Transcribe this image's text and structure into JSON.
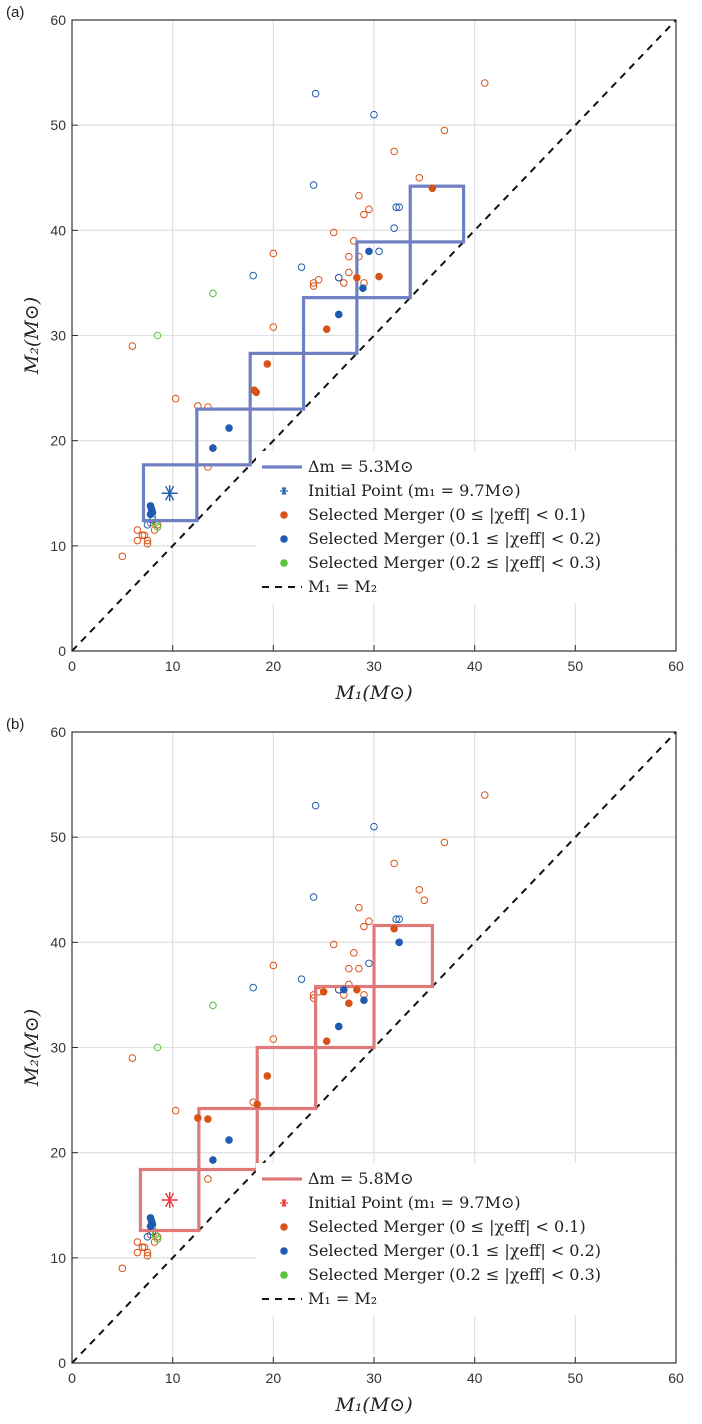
{
  "colors": {
    "orange": "#d95319",
    "blue": "#1f5bb0",
    "green": "#5cc23c",
    "ladder_a": "#6f7fc2",
    "ladder_b": "#e07a7a",
    "grid": "#e2e2e2"
  },
  "chart_data": [
    {
      "panel_label": "(a)",
      "type": "scatter",
      "xlabel": "M₁(M⊙)",
      "ylabel": "M₂(M⊙)",
      "xlim": [
        0,
        60
      ],
      "ylim": [
        0,
        60
      ],
      "xticks": [
        0,
        10,
        20,
        30,
        40,
        50,
        60
      ],
      "yticks": [
        0,
        10,
        20,
        30,
        40,
        50,
        60
      ],
      "grid": true,
      "legend_position": "lower-right",
      "legend": [
        "Δm = 5.3M⊙",
        "Initial Point (m₁ = 9.7M⊙)",
        "Selected Merger (0 ≤ |χeff| < 0.1)",
        "Selected Merger (0.1 ≤ |χeff| < 0.2)",
        "Selected Merger (0.2 ≤ |χeff| < 0.3)",
        "M₁ = M₂"
      ],
      "delta_m": 5.3,
      "ladder_start": 7.1,
      "ladder_steps": 6,
      "ladder_color": "#6f7fc2",
      "initial_point": {
        "x": 9.7,
        "y": 15.0,
        "color": "#1f5bb0"
      },
      "diagonal": {
        "x": [
          0,
          60
        ],
        "y": [
          0,
          60
        ]
      },
      "open_points": {
        "orange": [
          [
            41,
            54
          ],
          [
            37,
            49.5
          ],
          [
            34.5,
            45
          ],
          [
            32,
            47.5
          ],
          [
            29.5,
            42
          ],
          [
            28.5,
            43.3
          ],
          [
            29,
            41.5
          ],
          [
            28,
            39
          ],
          [
            28.5,
            37.5
          ],
          [
            27.5,
            37.5
          ],
          [
            27.5,
            36
          ],
          [
            29,
            35
          ],
          [
            27,
            35
          ],
          [
            26.5,
            35.5
          ],
          [
            24,
            35
          ],
          [
            24,
            34.7
          ],
          [
            24.5,
            35.3
          ],
          [
            20,
            37.8
          ],
          [
            20,
            30.8
          ],
          [
            26,
            39.8
          ],
          [
            10.3,
            24
          ],
          [
            12.5,
            23.3
          ],
          [
            13.5,
            23.2
          ],
          [
            13.5,
            17.5
          ],
          [
            6,
            29
          ],
          [
            5,
            9
          ],
          [
            6.5,
            11.5
          ],
          [
            7,
            11
          ],
          [
            7.5,
            10.5
          ],
          [
            7.5,
            10.2
          ],
          [
            7.2,
            11
          ],
          [
            6.5,
            10.5
          ],
          [
            7.8,
            12.2
          ],
          [
            8.2,
            11.5
          ],
          [
            8.5,
            12
          ]
        ],
        "blue": [
          [
            24.2,
            53
          ],
          [
            30,
            51
          ],
          [
            24,
            44.3
          ],
          [
            18,
            35.7
          ],
          [
            22.8,
            36.5
          ],
          [
            26.5,
            35.5
          ],
          [
            32.5,
            42.2
          ],
          [
            32.2,
            42.2
          ],
          [
            32,
            40.2
          ],
          [
            30.5,
            38
          ],
          [
            7.5,
            12
          ],
          [
            8,
            12.5
          ]
        ],
        "green": [
          [
            14,
            34
          ],
          [
            8.5,
            30
          ],
          [
            8.3,
            12.2
          ],
          [
            8.5,
            11.8
          ],
          [
            8,
            12.8
          ]
        ]
      },
      "selected_points": {
        "orange": [
          [
            35.8,
            44
          ],
          [
            30.5,
            35.6
          ],
          [
            28.3,
            35.5
          ],
          [
            25.3,
            30.6
          ],
          [
            19.4,
            27.3
          ],
          [
            18.1,
            24.8
          ],
          [
            18.3,
            24.6
          ],
          [
            14,
            19.3
          ]
        ],
        "blue": [
          [
            29.5,
            38
          ],
          [
            28.9,
            34.5
          ],
          [
            26.5,
            32
          ],
          [
            15.6,
            21.2
          ],
          [
            14,
            19.3
          ],
          [
            7.8,
            13.8
          ],
          [
            7.9,
            13.5
          ],
          [
            8,
            13.2
          ],
          [
            7.8,
            13
          ]
        ],
        "green": []
      }
    },
    {
      "panel_label": "(b)",
      "type": "scatter",
      "xlabel": "M₁(M⊙)",
      "ylabel": "M₂(M⊙)",
      "xlim": [
        0,
        60
      ],
      "ylim": [
        0,
        60
      ],
      "xticks": [
        0,
        10,
        20,
        30,
        40,
        50,
        60
      ],
      "yticks": [
        0,
        10,
        20,
        30,
        40,
        50,
        60
      ],
      "grid": true,
      "legend_position": "lower-right",
      "legend": [
        "Δm = 5.8M⊙",
        "Initial Point (m₁ = 9.7M⊙)",
        "Selected Merger (0 ≤ |χeff| < 0.1)",
        "Selected Merger (0.1 ≤ |χeff| < 0.2)",
        "Selected Merger (0.2 ≤ |χeff| < 0.3)",
        "M₁ = M₂"
      ],
      "delta_m": 5.8,
      "ladder_start": 6.8,
      "ladder_steps": 5,
      "ladder_color": "#e07a7a",
      "initial_point": {
        "x": 9.7,
        "y": 15.5,
        "color": "#ee3333"
      },
      "diagonal": {
        "x": [
          0,
          60
        ],
        "y": [
          0,
          60
        ]
      },
      "open_points": {
        "orange": [
          [
            41,
            54
          ],
          [
            37,
            49.5
          ],
          [
            34.5,
            45
          ],
          [
            32,
            47.5
          ],
          [
            35,
            44
          ],
          [
            29.5,
            42
          ],
          [
            28.5,
            43.3
          ],
          [
            29,
            41.5
          ],
          [
            28,
            39
          ],
          [
            28.5,
            37.5
          ],
          [
            27.5,
            37.5
          ],
          [
            27.5,
            36
          ],
          [
            29,
            35
          ],
          [
            27,
            35
          ],
          [
            26.5,
            35.5
          ],
          [
            24,
            35
          ],
          [
            24,
            34.7
          ],
          [
            24.5,
            35.3
          ],
          [
            20,
            37.8
          ],
          [
            20,
            30.8
          ],
          [
            26,
            39.8
          ],
          [
            10.3,
            24
          ],
          [
            13.5,
            17.5
          ],
          [
            18,
            24.8
          ],
          [
            6,
            29
          ],
          [
            5,
            9
          ],
          [
            6.5,
            11.5
          ],
          [
            7,
            11
          ],
          [
            7.5,
            10.5
          ],
          [
            7.5,
            10.2
          ],
          [
            7.2,
            11
          ],
          [
            6.5,
            10.5
          ],
          [
            7.8,
            12.2
          ],
          [
            8.2,
            11.5
          ],
          [
            8.5,
            12
          ]
        ],
        "blue": [
          [
            24.2,
            53
          ],
          [
            30,
            51
          ],
          [
            24,
            44.3
          ],
          [
            18,
            35.7
          ],
          [
            22.8,
            36.5
          ],
          [
            26.5,
            35.5
          ],
          [
            32.5,
            42.2
          ],
          [
            32.2,
            42.2
          ],
          [
            29.5,
            38
          ],
          [
            7.5,
            12
          ],
          [
            8,
            12.5
          ]
        ],
        "green": [
          [
            14,
            34
          ],
          [
            8.5,
            30
          ],
          [
            8.3,
            12.2
          ],
          [
            8.5,
            11.8
          ],
          [
            8,
            12.8
          ]
        ]
      },
      "selected_points": {
        "orange": [
          [
            32,
            41.3
          ],
          [
            27.5,
            34.2
          ],
          [
            28.3,
            35.5
          ],
          [
            25.3,
            30.6
          ],
          [
            25,
            35.3
          ],
          [
            19.4,
            27.3
          ],
          [
            18.4,
            24.6
          ],
          [
            12.5,
            23.3
          ],
          [
            13.5,
            23.2
          ]
        ],
        "blue": [
          [
            32.5,
            40
          ],
          [
            29,
            34.5
          ],
          [
            26.5,
            32
          ],
          [
            27,
            35.5
          ],
          [
            15.6,
            21.2
          ],
          [
            14,
            19.3
          ],
          [
            7.8,
            13.8
          ],
          [
            7.9,
            13.5
          ],
          [
            8,
            13.2
          ],
          [
            7.8,
            13
          ]
        ],
        "green": []
      }
    }
  ]
}
